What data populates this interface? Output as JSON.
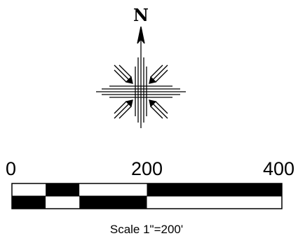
{
  "north_arrow": {
    "label": "N",
    "icon": "compass-rose-icon"
  },
  "scale_bar": {
    "unit_max": 400,
    "ticks": [
      "0",
      "200",
      "400"
    ],
    "tick_values": [
      0,
      200,
      400
    ],
    "segment_breaks": [
      0,
      50,
      100,
      200,
      400
    ],
    "caption": "Scale 1\"=200'",
    "colors": {
      "fill": "#000000",
      "blank": "#ffffff"
    }
  }
}
